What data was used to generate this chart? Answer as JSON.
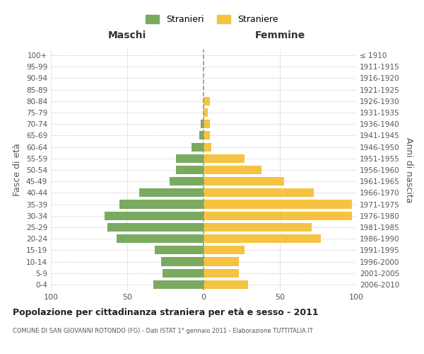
{
  "age_groups": [
    "0-4",
    "5-9",
    "10-14",
    "15-19",
    "20-24",
    "25-29",
    "30-34",
    "35-39",
    "40-44",
    "45-49",
    "50-54",
    "55-59",
    "60-64",
    "65-69",
    "70-74",
    "75-79",
    "80-84",
    "85-89",
    "90-94",
    "95-99",
    "100+"
  ],
  "birth_years": [
    "2006-2010",
    "2001-2005",
    "1996-2000",
    "1991-1995",
    "1986-1990",
    "1981-1985",
    "1976-1980",
    "1971-1975",
    "1966-1970",
    "1961-1965",
    "1956-1960",
    "1951-1955",
    "1946-1950",
    "1941-1945",
    "1936-1940",
    "1931-1935",
    "1926-1930",
    "1921-1925",
    "1916-1920",
    "1911-1915",
    "≤ 1910"
  ],
  "males": [
    33,
    27,
    28,
    32,
    57,
    63,
    65,
    55,
    42,
    22,
    18,
    18,
    8,
    3,
    2,
    0,
    0,
    0,
    0,
    0,
    0
  ],
  "females": [
    29,
    23,
    23,
    27,
    77,
    71,
    97,
    97,
    72,
    53,
    38,
    27,
    5,
    4,
    4,
    3,
    4,
    0,
    0,
    0,
    0
  ],
  "male_color": "#7aaa60",
  "female_color": "#f5c242",
  "background_color": "#ffffff",
  "grid_color": "#cccccc",
  "title": "Popolazione per cittadinanza straniera per età e sesso - 2011",
  "subtitle": "COMUNE DI SAN GIOVANNI ROTONDO (FG) - Dati ISTAT 1° gennaio 2011 - Elaborazione TUTTITALIA.IT",
  "ylabel_left": "Fasce di età",
  "ylabel_right": "Anni di nascita",
  "xlabel_left": "Maschi",
  "xlabel_right": "Femmine",
  "legend_male": "Stranieri",
  "legend_female": "Straniere",
  "xlim": 100,
  "dashed_line_color": "#999966"
}
